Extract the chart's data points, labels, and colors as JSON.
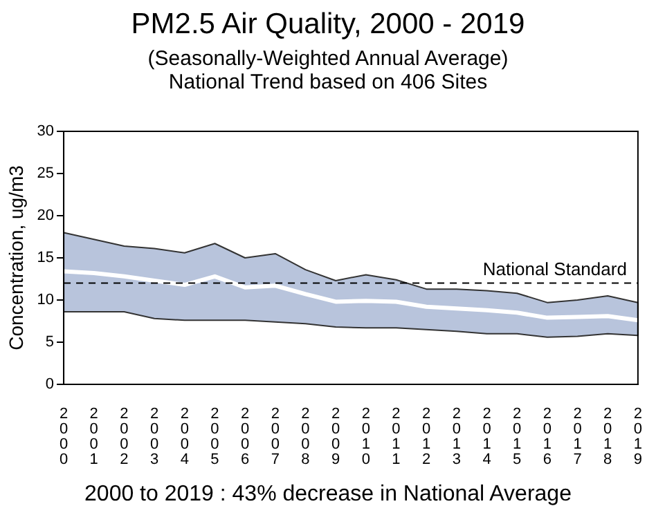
{
  "chart_data": {
    "type": "line",
    "title": "PM2.5 Air Quality, 2000 - 2019",
    "subtitle": "(Seasonally-Weighted Annual Average)\nNational Trend based on 406 Sites",
    "ylabel": "Concentration, ug/m3",
    "categories": [
      "2000",
      "2001",
      "2002",
      "2003",
      "2004",
      "2005",
      "2006",
      "2007",
      "2008",
      "2009",
      "2010",
      "2011",
      "2012",
      "2013",
      "2014",
      "2015",
      "2016",
      "2017",
      "2018",
      "2019"
    ],
    "series": [
      {
        "color": "#ffffff",
        "values": [
          13.4,
          13.2,
          12.8,
          12.3,
          11.8,
          12.8,
          11.5,
          11.7,
          10.7,
          9.8,
          9.9,
          9.8,
          9.2,
          9.0,
          8.8,
          8.5,
          7.9,
          8.0,
          8.1,
          7.6
        ],
        "lower": [
          8.6,
          8.6,
          8.6,
          7.8,
          7.6,
          7.6,
          7.6,
          7.4,
          7.2,
          6.8,
          6.7,
          6.7,
          6.5,
          6.3,
          6.0,
          6.0,
          5.6,
          5.7,
          6.0,
          5.8
        ],
        "upper": [
          18.0,
          17.2,
          16.4,
          16.1,
          15.6,
          16.7,
          15.0,
          15.5,
          13.6,
          12.3,
          13.0,
          12.4,
          11.3,
          11.3,
          11.1,
          10.8,
          9.7,
          10.0,
          10.5,
          9.7
        ]
      }
    ],
    "ylim": [
      0,
      30
    ],
    "yticks": [
      0,
      5,
      10,
      15,
      20,
      25,
      30
    ],
    "grid": false,
    "legend": false,
    "marker": "none",
    "ref_lines": [
      {
        "axis": "y",
        "value": 12,
        "label": "National Standard",
        "color": "#000000",
        "line_style": "dashed"
      }
    ],
    "annotations": [
      "2000 to 2019 :  43% decrease in National Average"
    ]
  }
}
